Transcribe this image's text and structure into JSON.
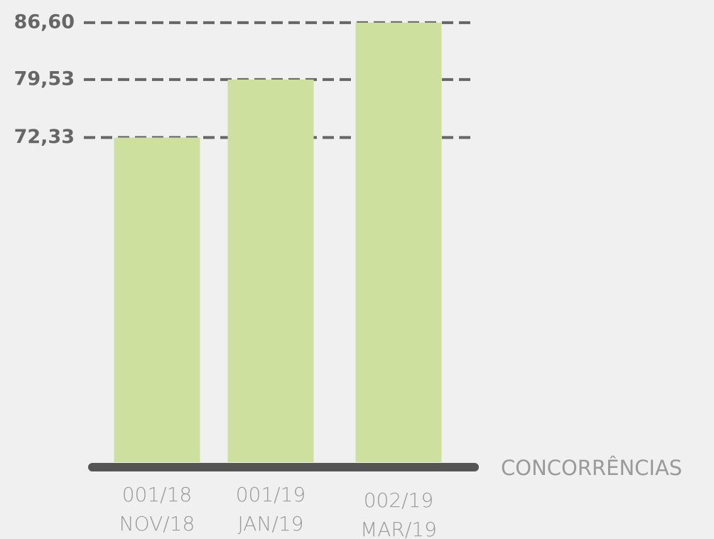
{
  "chart_data": {
    "type": "bar",
    "categories": [
      [
        "001/18",
        "NOV/18"
      ],
      [
        "001/19",
        "JAN/19"
      ],
      [
        "002/19",
        "MAR/19"
      ]
    ],
    "values": [
      72.33,
      79.53,
      86.6
    ],
    "value_labels": [
      "72,33",
      "79,53",
      "86,60"
    ],
    "color": "#cde09e",
    "x_label": "CONCORRÊNCIAS",
    "ylim": [
      32,
      88
    ]
  }
}
